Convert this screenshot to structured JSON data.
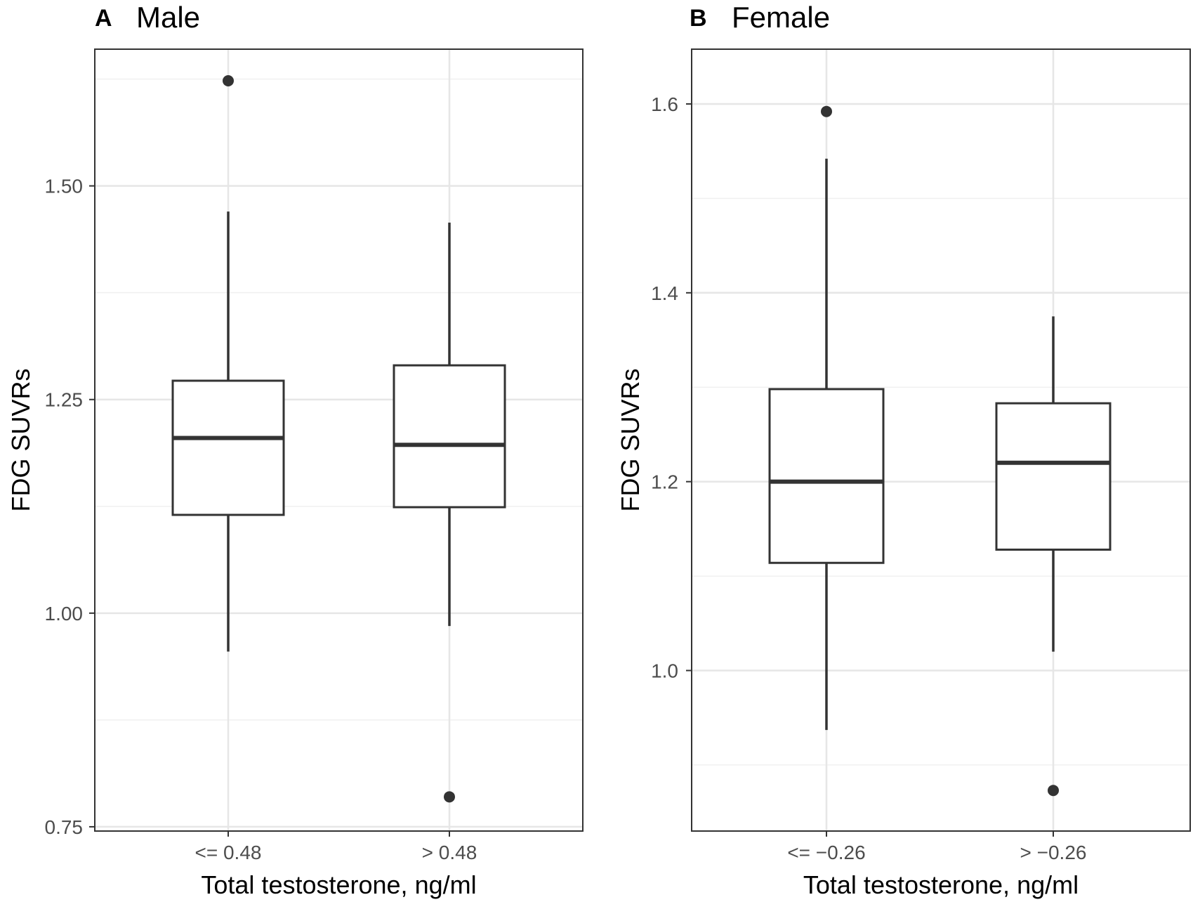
{
  "chart_data": [
    {
      "type": "box",
      "panel_letter": "A",
      "title": "Male",
      "xlabel": "Total testosterone, ng/ml",
      "ylabel": "FDG SUVRs",
      "ylim": [
        0.745,
        1.66
      ],
      "yticks": [
        0.75,
        1.0,
        1.25,
        1.5
      ],
      "ytick_labels": [
        "0.75",
        "1.00",
        "1.25",
        "1.50"
      ],
      "categories": [
        "<= 0.48",
        "> 0.48"
      ],
      "boxes": [
        {
          "category": "<= 0.48",
          "whisker_low": 0.955,
          "q1": 1.115,
          "median": 1.205,
          "q3": 1.272,
          "whisker_high": 1.47,
          "outliers": [
            1.623
          ]
        },
        {
          "category": "> 0.48",
          "whisker_low": 0.985,
          "q1": 1.124,
          "median": 1.197,
          "q3": 1.29,
          "whisker_high": 1.457,
          "outliers": [
            0.785
          ]
        }
      ],
      "grid": true
    },
    {
      "type": "box",
      "panel_letter": "B",
      "title": "Female",
      "xlabel": "Total testosterone, ng/ml",
      "ylabel": "FDG SUVRs",
      "ylim": [
        0.83,
        1.658
      ],
      "yticks": [
        1.0,
        1.2,
        1.4,
        1.6
      ],
      "ytick_labels": [
        "1.0",
        "1.2",
        "1.4",
        "1.6"
      ],
      "categories": [
        "<= −0.26",
        "> −0.26"
      ],
      "boxes": [
        {
          "category": "<= −0.26",
          "whisker_low": 0.937,
          "q1": 1.114,
          "median": 1.2,
          "q3": 1.298,
          "whisker_high": 1.542,
          "outliers": [
            1.592
          ]
        },
        {
          "category": "> −0.26",
          "whisker_low": 1.02,
          "q1": 1.128,
          "median": 1.22,
          "q3": 1.283,
          "whisker_high": 1.375,
          "outliers": [
            0.873
          ]
        }
      ],
      "grid": true
    }
  ]
}
